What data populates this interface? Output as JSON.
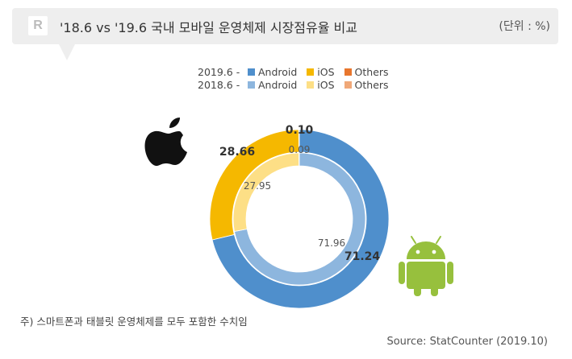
{
  "header": {
    "logo_text": "R",
    "title": "'18.6 vs '19.6 국내 모바일 운영체제 시장점유율 비교",
    "unit": "(단위 : %)"
  },
  "legend": [
    {
      "period": "2019.6 -",
      "items": [
        {
          "label": "Android",
          "color": "#4f8fcc"
        },
        {
          "label": "iOS",
          "color": "#f5b800"
        },
        {
          "label": "Others",
          "color": "#e8762d"
        }
      ]
    },
    {
      "period": "2018.6 -",
      "items": [
        {
          "label": "Android",
          "color": "#8db6de"
        },
        {
          "label": "iOS",
          "color": "#fddf86"
        },
        {
          "label": "Others",
          "color": "#f0a878"
        }
      ]
    }
  ],
  "chart_data": {
    "type": "pie",
    "variant": "nested-donut",
    "categories": [
      "Android",
      "iOS",
      "Others"
    ],
    "series": [
      {
        "name": "2019.6",
        "ring": "outer",
        "values": [
          71.24,
          28.66,
          0.1
        ],
        "colors": [
          "#4f8fcc",
          "#f5b800",
          "#e8762d"
        ],
        "labels": [
          "71.24",
          "28.66",
          "0.10"
        ]
      },
      {
        "name": "2018.6",
        "ring": "inner",
        "values": [
          71.96,
          27.95,
          0.09
        ],
        "colors": [
          "#8db6de",
          "#fddf86",
          "#f0a878"
        ],
        "labels": [
          "71.96",
          "27.95",
          "0.09"
        ]
      }
    ],
    "icons": [
      "apple-logo-icon",
      "android-robot-icon"
    ]
  },
  "footer": {
    "note": "주) 스마트폰과 태블릿 운영체제를 모두 포함한 수치임",
    "source": "Source: StatCounter (2019.10)"
  }
}
